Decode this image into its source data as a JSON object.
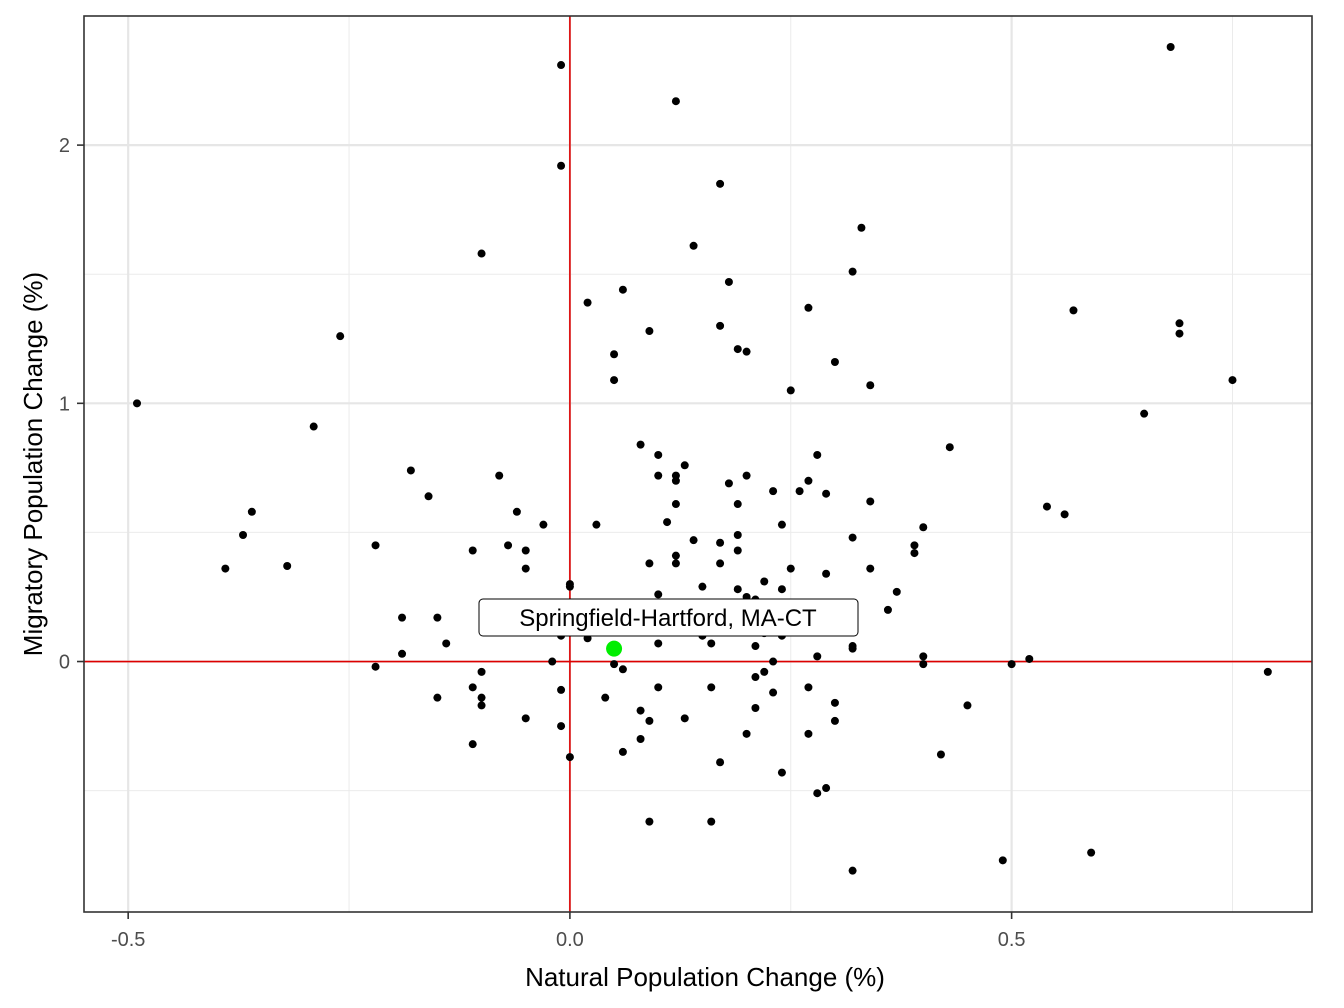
{
  "chart_data": {
    "type": "scatter",
    "xlabel": "Natural Population Change (%)",
    "ylabel": "Migratory Population Change (%)",
    "xlim": [
      -0.55,
      0.84
    ],
    "ylim": [
      -0.97,
      2.5
    ],
    "x_ticks": [
      -0.5,
      0.0,
      0.5
    ],
    "x_tick_labels": [
      "-0.5",
      "0.0",
      "0.5"
    ],
    "y_ticks": [
      0,
      1,
      2
    ],
    "y_tick_labels": [
      "0",
      "1",
      "2"
    ],
    "x_minor": [
      -0.25,
      0.25,
      0.75
    ],
    "y_minor": [
      -0.5,
      0.5,
      1.5
    ],
    "grid": true,
    "reference_lines": {
      "x": 0,
      "y": 0,
      "color": "#dd0000"
    },
    "point_color": "#000000",
    "highlight_color": "#00ee00",
    "highlight": {
      "label": "Springfield-Hartford, MA-CT",
      "x": 0.05,
      "y": 0.05
    },
    "points": [
      [
        0.68,
        2.38
      ],
      [
        -0.01,
        2.31
      ],
      [
        0.12,
        2.17
      ],
      [
        -0.01,
        1.92
      ],
      [
        0.17,
        1.85
      ],
      [
        0.33,
        1.68
      ],
      [
        0.14,
        1.61
      ],
      [
        -0.1,
        1.58
      ],
      [
        0.32,
        1.51
      ],
      [
        0.18,
        1.47
      ],
      [
        0.06,
        1.44
      ],
      [
        0.02,
        1.39
      ],
      [
        0.27,
        1.37
      ],
      [
        0.57,
        1.36
      ],
      [
        0.69,
        1.31
      ],
      [
        0.17,
        1.3
      ],
      [
        0.09,
        1.28
      ],
      [
        -0.26,
        1.26
      ],
      [
        0.69,
        1.27
      ],
      [
        0.19,
        1.21
      ],
      [
        0.2,
        1.2
      ],
      [
        0.05,
        1.19
      ],
      [
        0.3,
        1.16
      ],
      [
        0.05,
        1.09
      ],
      [
        0.75,
        1.09
      ],
      [
        0.34,
        1.07
      ],
      [
        0.25,
        1.05
      ],
      [
        -0.49,
        1.0
      ],
      [
        0.65,
        0.96
      ],
      [
        -0.29,
        0.91
      ],
      [
        0.08,
        0.84
      ],
      [
        0.43,
        0.83
      ],
      [
        0.1,
        0.8
      ],
      [
        0.28,
        0.8
      ],
      [
        0.13,
        0.76
      ],
      [
        -0.18,
        0.74
      ],
      [
        -0.08,
        0.72
      ],
      [
        0.1,
        0.72
      ],
      [
        0.12,
        0.72
      ],
      [
        0.2,
        0.72
      ],
      [
        0.12,
        0.7
      ],
      [
        0.27,
        0.7
      ],
      [
        0.18,
        0.69
      ],
      [
        0.23,
        0.66
      ],
      [
        0.26,
        0.66
      ],
      [
        -0.16,
        0.64
      ],
      [
        0.29,
        0.65
      ],
      [
        0.12,
        0.61
      ],
      [
        0.19,
        0.61
      ],
      [
        0.34,
        0.62
      ],
      [
        0.54,
        0.6
      ],
      [
        -0.36,
        0.58
      ],
      [
        -0.06,
        0.58
      ],
      [
        0.56,
        0.57
      ],
      [
        0.11,
        0.54
      ],
      [
        -0.03,
        0.53
      ],
      [
        0.03,
        0.53
      ],
      [
        0.24,
        0.53
      ],
      [
        0.4,
        0.52
      ],
      [
        -0.37,
        0.49
      ],
      [
        0.19,
        0.49
      ],
      [
        0.32,
        0.48
      ],
      [
        0.14,
        0.47
      ],
      [
        -0.22,
        0.45
      ],
      [
        -0.07,
        0.45
      ],
      [
        0.17,
        0.46
      ],
      [
        0.39,
        0.45
      ],
      [
        -0.11,
        0.43
      ],
      [
        -0.05,
        0.43
      ],
      [
        0.19,
        0.43
      ],
      [
        0.39,
        0.42
      ],
      [
        0.12,
        0.41
      ],
      [
        0.12,
        0.38
      ],
      [
        0.09,
        0.38
      ],
      [
        0.17,
        0.38
      ],
      [
        -0.39,
        0.36
      ],
      [
        -0.32,
        0.37
      ],
      [
        -0.05,
        0.36
      ],
      [
        0.25,
        0.36
      ],
      [
        0.34,
        0.36
      ],
      [
        0.29,
        0.34
      ],
      [
        0.22,
        0.31
      ],
      [
        0.0,
        0.3
      ],
      [
        0.0,
        0.29
      ],
      [
        0.15,
        0.29
      ],
      [
        0.19,
        0.28
      ],
      [
        0.24,
        0.28
      ],
      [
        0.37,
        0.27
      ],
      [
        0.1,
        0.26
      ],
      [
        0.2,
        0.25
      ],
      [
        0.21,
        0.24
      ],
      [
        0.36,
        0.2
      ],
      [
        0.27,
        0.19
      ],
      [
        -0.19,
        0.17
      ],
      [
        -0.15,
        0.17
      ],
      [
        0.16,
        0.15
      ],
      [
        0.2,
        0.15
      ],
      [
        0.08,
        0.14
      ],
      [
        0.04,
        0.13
      ],
      [
        -0.01,
        0.12
      ],
      [
        0.07,
        0.12
      ],
      [
        0.17,
        0.12
      ],
      [
        0.22,
        0.11
      ],
      [
        -0.01,
        0.1
      ],
      [
        0.15,
        0.1
      ],
      [
        0.24,
        0.1
      ],
      [
        0.02,
        0.09
      ],
      [
        -0.14,
        0.07
      ],
      [
        0.1,
        0.07
      ],
      [
        0.16,
        0.07
      ],
      [
        0.21,
        0.06
      ],
      [
        0.32,
        0.06
      ],
      [
        0.32,
        0.05
      ],
      [
        -0.19,
        0.03
      ],
      [
        0.28,
        0.02
      ],
      [
        0.4,
        0.02
      ],
      [
        0.52,
        0.01
      ],
      [
        -0.02,
        0.0
      ],
      [
        0.23,
        0.0
      ],
      [
        0.4,
        -0.01
      ],
      [
        0.5,
        -0.01
      ],
      [
        -0.22,
        -0.02
      ],
      [
        0.05,
        -0.01
      ],
      [
        0.06,
        -0.03
      ],
      [
        0.22,
        -0.04
      ],
      [
        -0.1,
        -0.04
      ],
      [
        0.79,
        -0.04
      ],
      [
        0.21,
        -0.06
      ],
      [
        -0.11,
        -0.1
      ],
      [
        -0.01,
        -0.11
      ],
      [
        0.1,
        -0.1
      ],
      [
        0.16,
        -0.1
      ],
      [
        0.27,
        -0.1
      ],
      [
        0.23,
        -0.12
      ],
      [
        -0.15,
        -0.14
      ],
      [
        -0.1,
        -0.14
      ],
      [
        0.04,
        -0.14
      ],
      [
        -0.1,
        -0.17
      ],
      [
        0.3,
        -0.16
      ],
      [
        0.45,
        -0.17
      ],
      [
        0.21,
        -0.18
      ],
      [
        0.08,
        -0.19
      ],
      [
        -0.05,
        -0.22
      ],
      [
        0.09,
        -0.23
      ],
      [
        0.13,
        -0.22
      ],
      [
        0.3,
        -0.23
      ],
      [
        -0.01,
        -0.25
      ],
      [
        0.08,
        -0.3
      ],
      [
        0.2,
        -0.28
      ],
      [
        0.27,
        -0.28
      ],
      [
        -0.11,
        -0.32
      ],
      [
        0.06,
        -0.35
      ],
      [
        0.42,
        -0.36
      ],
      [
        0.0,
        -0.37
      ],
      [
        0.17,
        -0.39
      ],
      [
        0.24,
        -0.43
      ],
      [
        0.29,
        -0.49
      ],
      [
        0.28,
        -0.51
      ],
      [
        0.09,
        -0.62
      ],
      [
        0.16,
        -0.62
      ],
      [
        0.59,
        -0.74
      ],
      [
        0.49,
        -0.77
      ],
      [
        0.32,
        -0.81
      ]
    ]
  }
}
